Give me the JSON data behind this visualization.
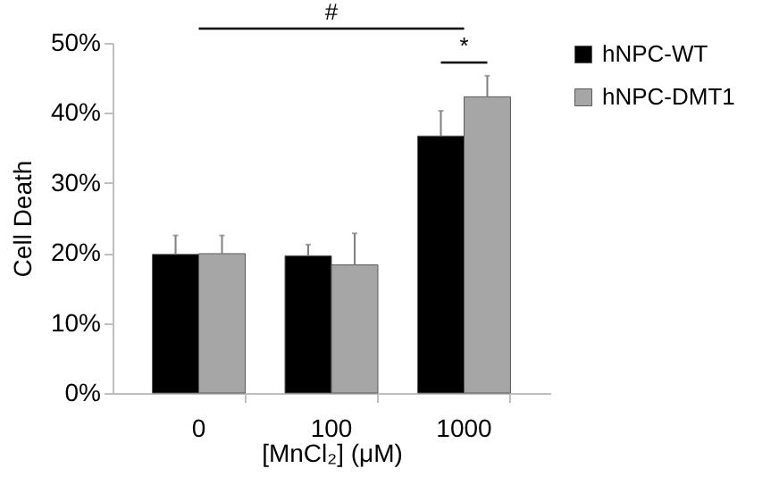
{
  "chart_data": {
    "type": "bar",
    "categories": [
      "0",
      "100",
      "1000"
    ],
    "xlabel": "[MnCl₂] (μM)",
    "ylabel": "Cell Death",
    "ylim": [
      0,
      50
    ],
    "yticks": [
      {
        "value": 0,
        "label": "0%"
      },
      {
        "value": 10,
        "label": "10%"
      },
      {
        "value": 20,
        "label": "20%"
      },
      {
        "value": 30,
        "label": "30%"
      },
      {
        "value": 40,
        "label": "40%"
      },
      {
        "value": 50,
        "label": "50%"
      }
    ],
    "series": [
      {
        "name": "hNPC-WT",
        "color": "#000000",
        "values": [
          19.8,
          19.6,
          36.7
        ],
        "errors": [
          [
            19.8,
            22.5
          ],
          [
            19.6,
            21.2
          ],
          [
            36.7,
            40.3
          ]
        ]
      },
      {
        "name": "hNPC-DMT1",
        "color": "#a6a6a6",
        "values": [
          19.9,
          18.3,
          42.3
        ],
        "errors": [
          [
            19.9,
            22.5
          ],
          [
            18.3,
            22.8
          ],
          [
            42.3,
            45.3
          ]
        ]
      }
    ],
    "annotations": [
      "#",
      "*"
    ],
    "legend": "right",
    "grid": false
  }
}
